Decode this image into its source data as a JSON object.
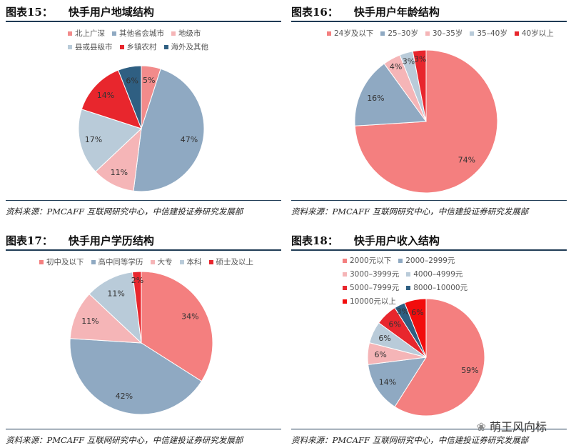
{
  "watermark": "萌王风向标",
  "chart_data": [
    {
      "type": "pie",
      "fig": "图表15：",
      "title": "快手用户地域结构",
      "source": "资料来源：PMCAFF 互联网研究中心，中信建投证券研究发展部",
      "categories": [
        "北上广深",
        "其他省会城市",
        "地级市",
        "县或县级市",
        "乡镇农村",
        "海外及其他"
      ],
      "values": [
        5,
        47,
        11,
        17,
        14,
        6
      ],
      "colors": [
        "#f28b8b",
        "#8fa9c2",
        "#f5b5b7",
        "#b9cbd9",
        "#e8262d",
        "#2f5f82"
      ]
    },
    {
      "type": "pie",
      "fig": "图表16：",
      "title": "快手用户年龄结构",
      "source": "资料来源：PMCAFF 互联网研究中心，中信建投证券研究发展部",
      "categories": [
        "24岁及以下",
        "25–30岁",
        "30–35岁",
        "35–40岁",
        "40岁以上"
      ],
      "values": [
        74,
        16,
        4,
        3,
        3
      ],
      "colors": [
        "#f47f7f",
        "#8fa9c2",
        "#f5b5b7",
        "#b9cbd9",
        "#e8262d"
      ]
    },
    {
      "type": "pie",
      "fig": "图表17：",
      "title": "快手用户学历结构",
      "source": "资料来源：PMCAFF 互联网研究中心，中信建投证券研究发展部",
      "categories": [
        "初中及以下",
        "高中同等学历",
        "大专",
        "本科",
        "硕士及以上"
      ],
      "values": [
        34,
        42,
        11,
        11,
        2
      ],
      "colors": [
        "#f47f7f",
        "#8fa9c2",
        "#f5b5b7",
        "#b9cbd9",
        "#e8262d"
      ]
    },
    {
      "type": "pie",
      "fig": "图表18：",
      "title": "快手用户收入结构",
      "source": "资料来源：PMCAFF 互联网研究中心，中信建投证券研究发展部",
      "categories": [
        "2000元以下",
        "2000–2999元",
        "3000–3999元",
        "4000–4999元",
        "5000–7999元",
        "8000–10000元",
        "10000元以上"
      ],
      "values": [
        59,
        14,
        6,
        6,
        6,
        3,
        6
      ],
      "colors": [
        "#f47f7f",
        "#8fa9c2",
        "#f5b5b7",
        "#b9cbd9",
        "#e8262d",
        "#2f5f82",
        "#f20d0d"
      ]
    }
  ]
}
